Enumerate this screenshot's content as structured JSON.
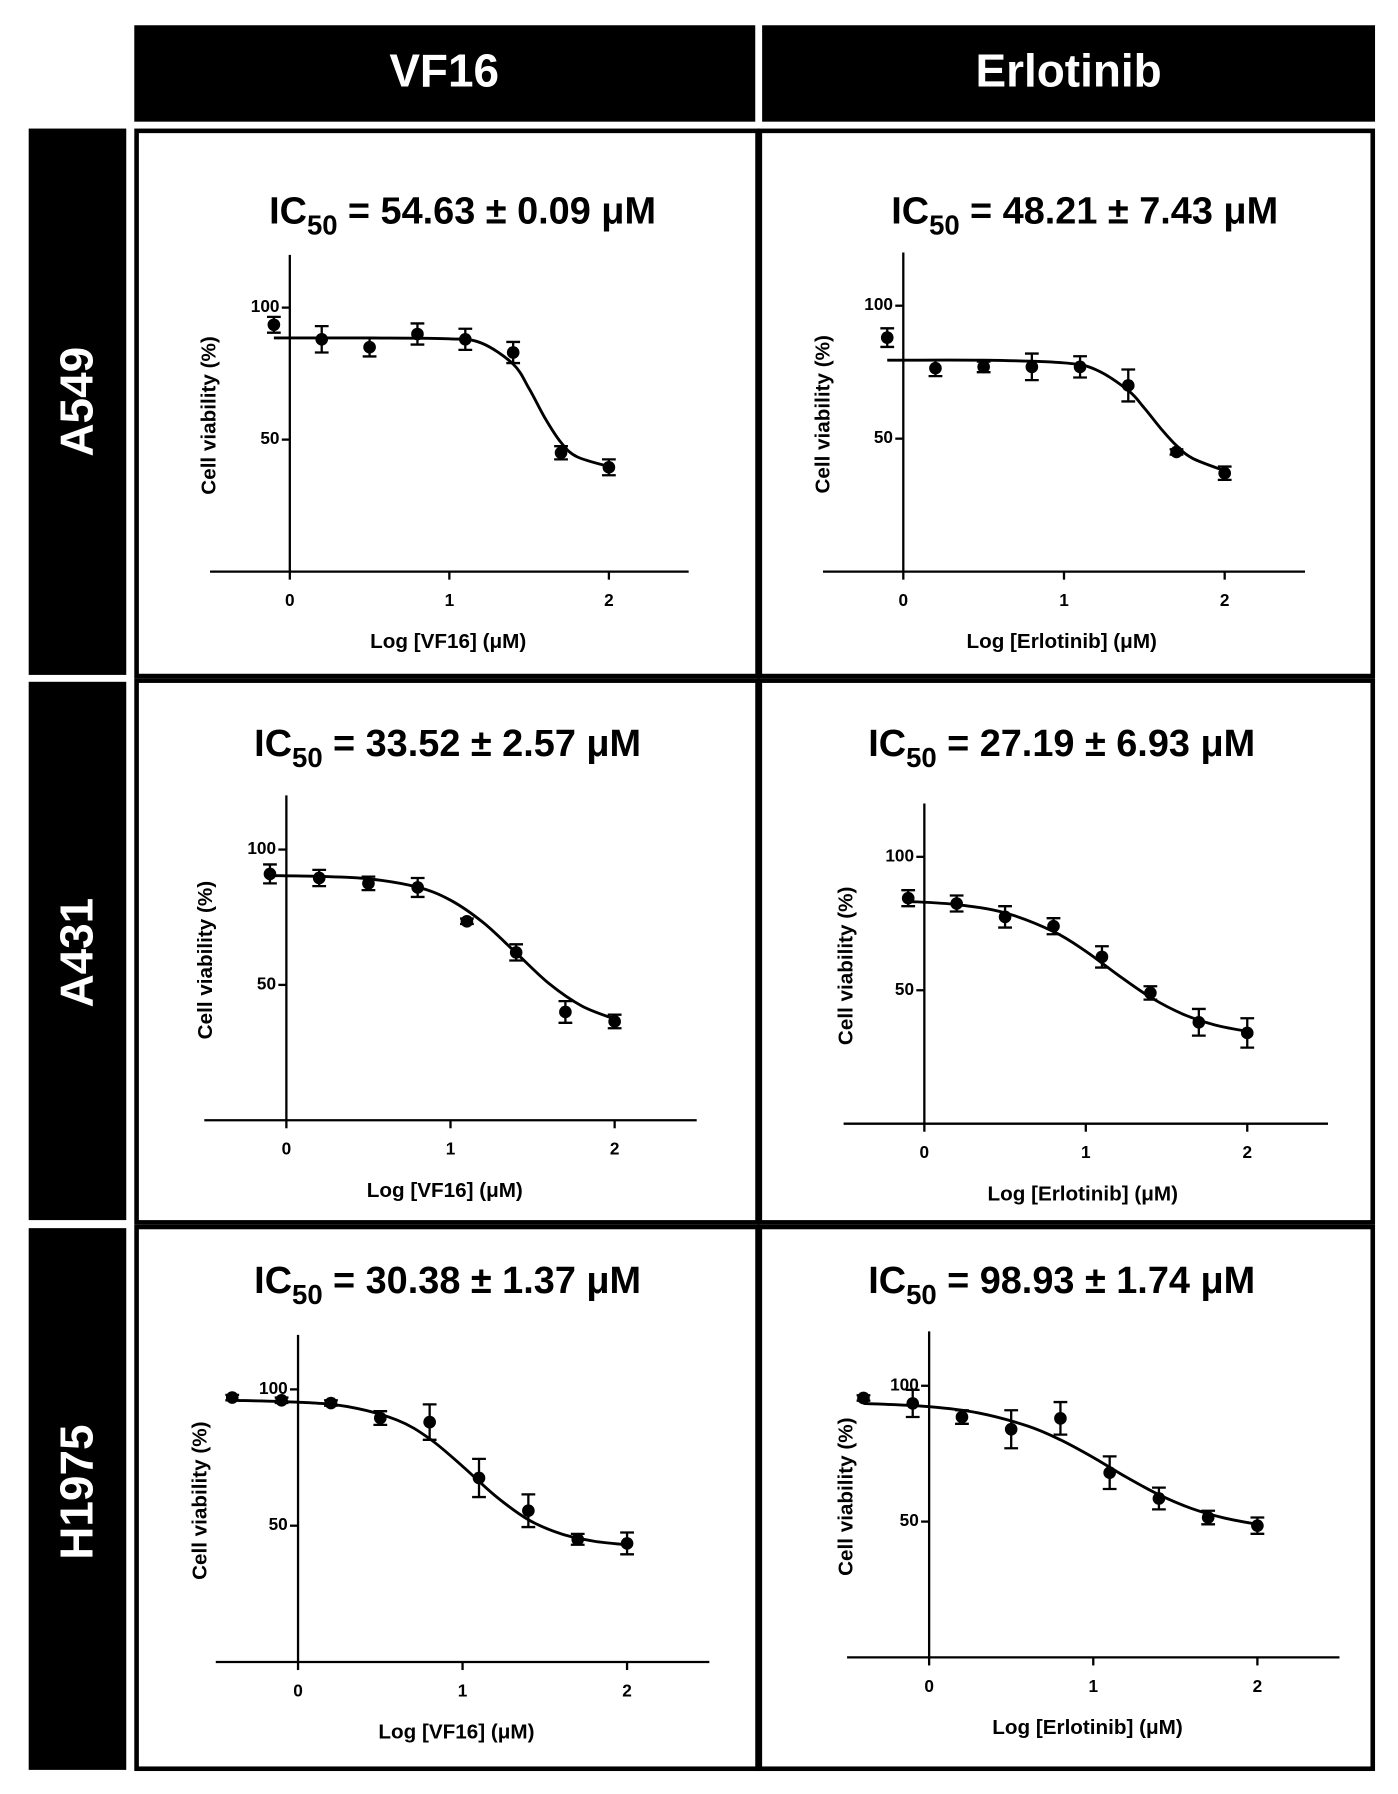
{
  "column_headers": [
    "VF16",
    "Erlotinib"
  ],
  "row_headers": [
    "A549",
    "A431",
    "H1975"
  ],
  "chart_data": [
    {
      "type": "scatter",
      "title": {
        "main": "IC",
        "sub": "50",
        "rest": "= 54.63 ± 0.09 μM"
      },
      "x_label": "Log [VF16] (μM)",
      "y_label": "Cell viability (%)",
      "color": "#000000",
      "x": [
        -0.1,
        0.2,
        0.5,
        0.8,
        1.1,
        1.4,
        1.7,
        2.0
      ],
      "values": [
        93.5,
        88,
        85,
        90,
        88,
        83,
        45,
        39.5
      ],
      "errors": [
        3,
        5,
        3.5,
        4,
        4,
        4,
        2.5,
        3
      ],
      "fit": {
        "x": [
          -0.1,
          0.5,
          1.0,
          1.2,
          1.4,
          1.5,
          1.6,
          1.7,
          1.8,
          2.0
        ],
        "values": [
          88.5,
          88.5,
          88.2,
          86.6,
          78.6,
          69.3,
          58.1,
          48.9,
          43.5,
          39.8
        ]
      },
      "xlim": [
        -0.5,
        2.5
      ],
      "ylim": [
        0,
        120
      ],
      "xticks": [
        0,
        1,
        2
      ],
      "yticks": [
        50,
        100
      ]
    },
    {
      "type": "scatter",
      "title": {
        "main": "IC",
        "sub": "50",
        "rest": "= 48.21 ± 7.43 μM"
      },
      "x_label": "Log [Erlotinib] (μM)",
      "y_label": "Cell viability (%)",
      "color": "#000000",
      "x": [
        -0.1,
        0.2,
        0.5,
        0.8,
        1.1,
        1.4,
        1.7,
        2.0
      ],
      "values": [
        88,
        76.5,
        77,
        77,
        77,
        70,
        45,
        37
      ],
      "errors": [
        3.5,
        3,
        2,
        5,
        4,
        6,
        1,
        2.5
      ],
      "fit": {
        "x": [
          -0.1,
          0.5,
          1.0,
          1.2,
          1.4,
          1.5,
          1.6,
          1.7,
          1.8,
          2.0
        ],
        "values": [
          79.5,
          79.5,
          78.5,
          75.9,
          68.1,
          61.5,
          54,
          47.4,
          42.6,
          37.9
        ]
      },
      "xlim": [
        -0.5,
        2.5
      ],
      "ylim": [
        0,
        120
      ],
      "xticks": [
        0,
        1,
        2
      ],
      "yticks": [
        50,
        100
      ]
    },
    {
      "type": "scatter",
      "title": {
        "main": "IC",
        "sub": "50",
        "rest": "= 33.52 ± 2.57 μM"
      },
      "x_label": "Log [VF16] (μM)",
      "y_label": "Cell viability (%)",
      "color": "#000000",
      "x": [
        -0.1,
        0.2,
        0.5,
        0.8,
        1.1,
        1.4,
        1.7,
        2.0
      ],
      "values": [
        91,
        89.5,
        87.5,
        86,
        73.5,
        62,
        40,
        36.5
      ],
      "errors": [
        3.5,
        3,
        2.5,
        3.5,
        1,
        3,
        4,
        2.5
      ],
      "fit": {
        "x": [
          -0.1,
          0.2,
          0.5,
          0.8,
          1.0,
          1.2,
          1.4,
          1.6,
          1.8,
          2.0
        ],
        "values": [
          90.4,
          90.1,
          89.2,
          86.1,
          81.3,
          73,
          61.8,
          50.5,
          42.2,
          37.4
        ]
      },
      "xlim": [
        -0.5,
        2.5
      ],
      "ylim": [
        0,
        120
      ],
      "xticks": [
        0,
        1,
        2
      ],
      "yticks": [
        50,
        100
      ]
    },
    {
      "type": "scatter",
      "title": {
        "main": "IC",
        "sub": "50",
        "rest": "= 27.19 ± 6.93 μM"
      },
      "x_label": "Log [Erlotinib] (μM)",
      "y_label": "Cell viability (%)",
      "color": "#000000",
      "x": [
        -0.1,
        0.2,
        0.5,
        0.8,
        1.1,
        1.4,
        1.7,
        2.0
      ],
      "values": [
        84.5,
        82.5,
        77.5,
        74,
        62.5,
        49,
        38,
        34
      ],
      "errors": [
        3,
        3,
        4,
        3,
        4,
        2.5,
        5,
        5.5
      ],
      "fit": {
        "x": [
          -0.1,
          0.2,
          0.5,
          0.8,
          1.0,
          1.2,
          1.4,
          1.6,
          1.8,
          2.0
        ],
        "values": [
          83.3,
          82.1,
          79,
          72,
          64.6,
          55.7,
          47.4,
          41.1,
          37,
          34.6
        ]
      },
      "xlim": [
        -0.5,
        2.5
      ],
      "ylim": [
        0,
        120
      ],
      "xticks": [
        0,
        1,
        2
      ],
      "yticks": [
        50,
        100
      ]
    },
    {
      "type": "scatter",
      "title": {
        "main": "IC",
        "sub": "50",
        "rest": "= 30.38 ± 1.37 μM"
      },
      "x_label": "Log [VF16] (μM)",
      "y_label": "Cell viability (%)",
      "color": "#000000",
      "x": [
        -0.4,
        -0.1,
        0.2,
        0.5,
        0.8,
        1.1,
        1.4,
        1.7,
        2.0
      ],
      "values": [
        97,
        96,
        95,
        89.5,
        88,
        67.5,
        55.5,
        45,
        43.5
      ],
      "errors": [
        1,
        1,
        1,
        2.5,
        6.5,
        7,
        6,
        2,
        4
      ],
      "fit": {
        "x": [
          -0.4,
          0,
          0.3,
          0.6,
          0.8,
          1.0,
          1.2,
          1.4,
          1.6,
          1.8,
          2.0
        ],
        "values": [
          96,
          95.3,
          93.7,
          88.8,
          81.9,
          71.8,
          60.9,
          52.2,
          47,
          44.3,
          43
        ]
      },
      "xlim": [
        -0.5,
        2.5
      ],
      "ylim": [
        0,
        120
      ],
      "xticks": [
        0,
        1,
        2
      ],
      "yticks": [
        50,
        100
      ]
    },
    {
      "type": "scatter",
      "title": {
        "main": "IC",
        "sub": "50",
        "rest": "= 98.93 ± 1.74 μM"
      },
      "x_label": "Log [Erlotinib] (μM)",
      "y_label": "Cell viability (%)",
      "color": "#000000",
      "x": [
        -0.4,
        -0.1,
        0.2,
        0.5,
        0.8,
        1.1,
        1.4,
        1.7,
        2.0
      ],
      "values": [
        95.5,
        93.5,
        88.5,
        84,
        88,
        68,
        58.5,
        51.5,
        48.5
      ],
      "errors": [
        1,
        5,
        2.5,
        7,
        6,
        6,
        4,
        2.5,
        3
      ],
      "fit": {
        "x": [
          -0.4,
          0,
          0.3,
          0.6,
          0.8,
          1.0,
          1.2,
          1.4,
          1.6,
          1.8,
          2.0
        ],
        "values": [
          93.5,
          92.3,
          90,
          85.2,
          80.1,
          73.6,
          66.4,
          59.9,
          54.8,
          51.3,
          49
        ]
      },
      "xlim": [
        -0.5,
        2.5
      ],
      "ylim": [
        0,
        120
      ],
      "xticks": [
        0,
        1,
        2
      ],
      "yticks": [
        50,
        100
      ]
    }
  ]
}
